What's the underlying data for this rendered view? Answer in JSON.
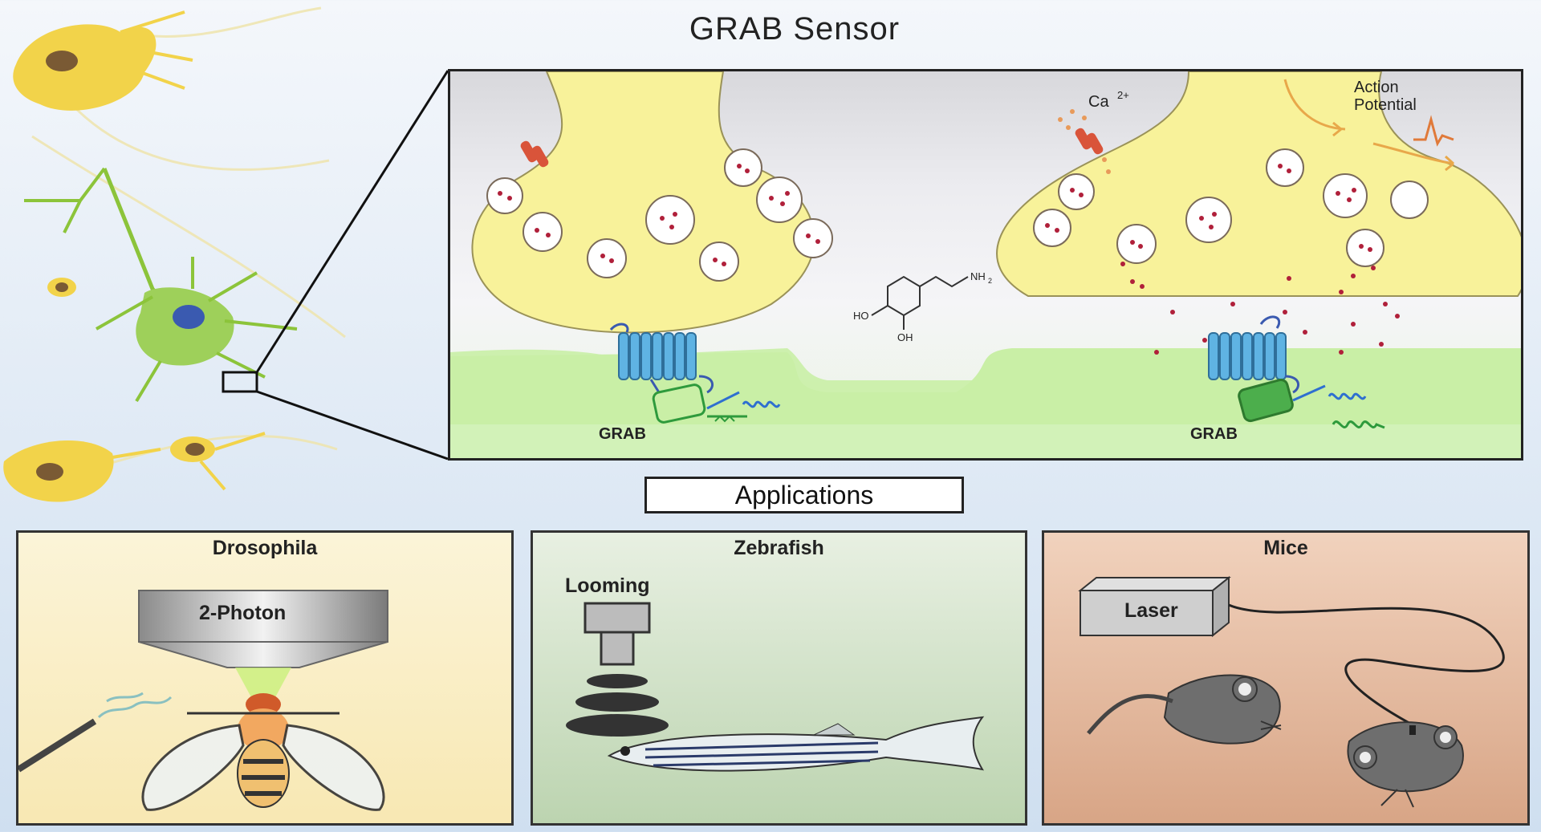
{
  "title": "GRAB Sensor",
  "synapse": {
    "calcium_label": "Ca",
    "calcium_superscript": "2+",
    "action_potential_line1": "Action",
    "action_potential_line2": "Potential",
    "sensor_label_left": "GRAB",
    "sensor_label_right": "GRAB",
    "molecule_group_top": "NH",
    "molecule_group_sub": "2",
    "molecule_oh_left": "HO",
    "molecule_oh_bottom": "OH"
  },
  "applications_label": "Applications",
  "panels": {
    "drosophila": {
      "title": "Drosophila",
      "microscope_label": "2-Photon"
    },
    "zebrafish": {
      "title": "Zebrafish",
      "stimulus_label": "Looming"
    },
    "mice": {
      "title": "Mice",
      "device_label": "Laser"
    }
  },
  "colors": {
    "axon_terminal": "#f8f29a",
    "dendrite": "#c9efa6",
    "sensor_blue": "#5fb3e3",
    "fluor_green": "#2e9a3c",
    "neurotransmitter": "#b0203a"
  }
}
